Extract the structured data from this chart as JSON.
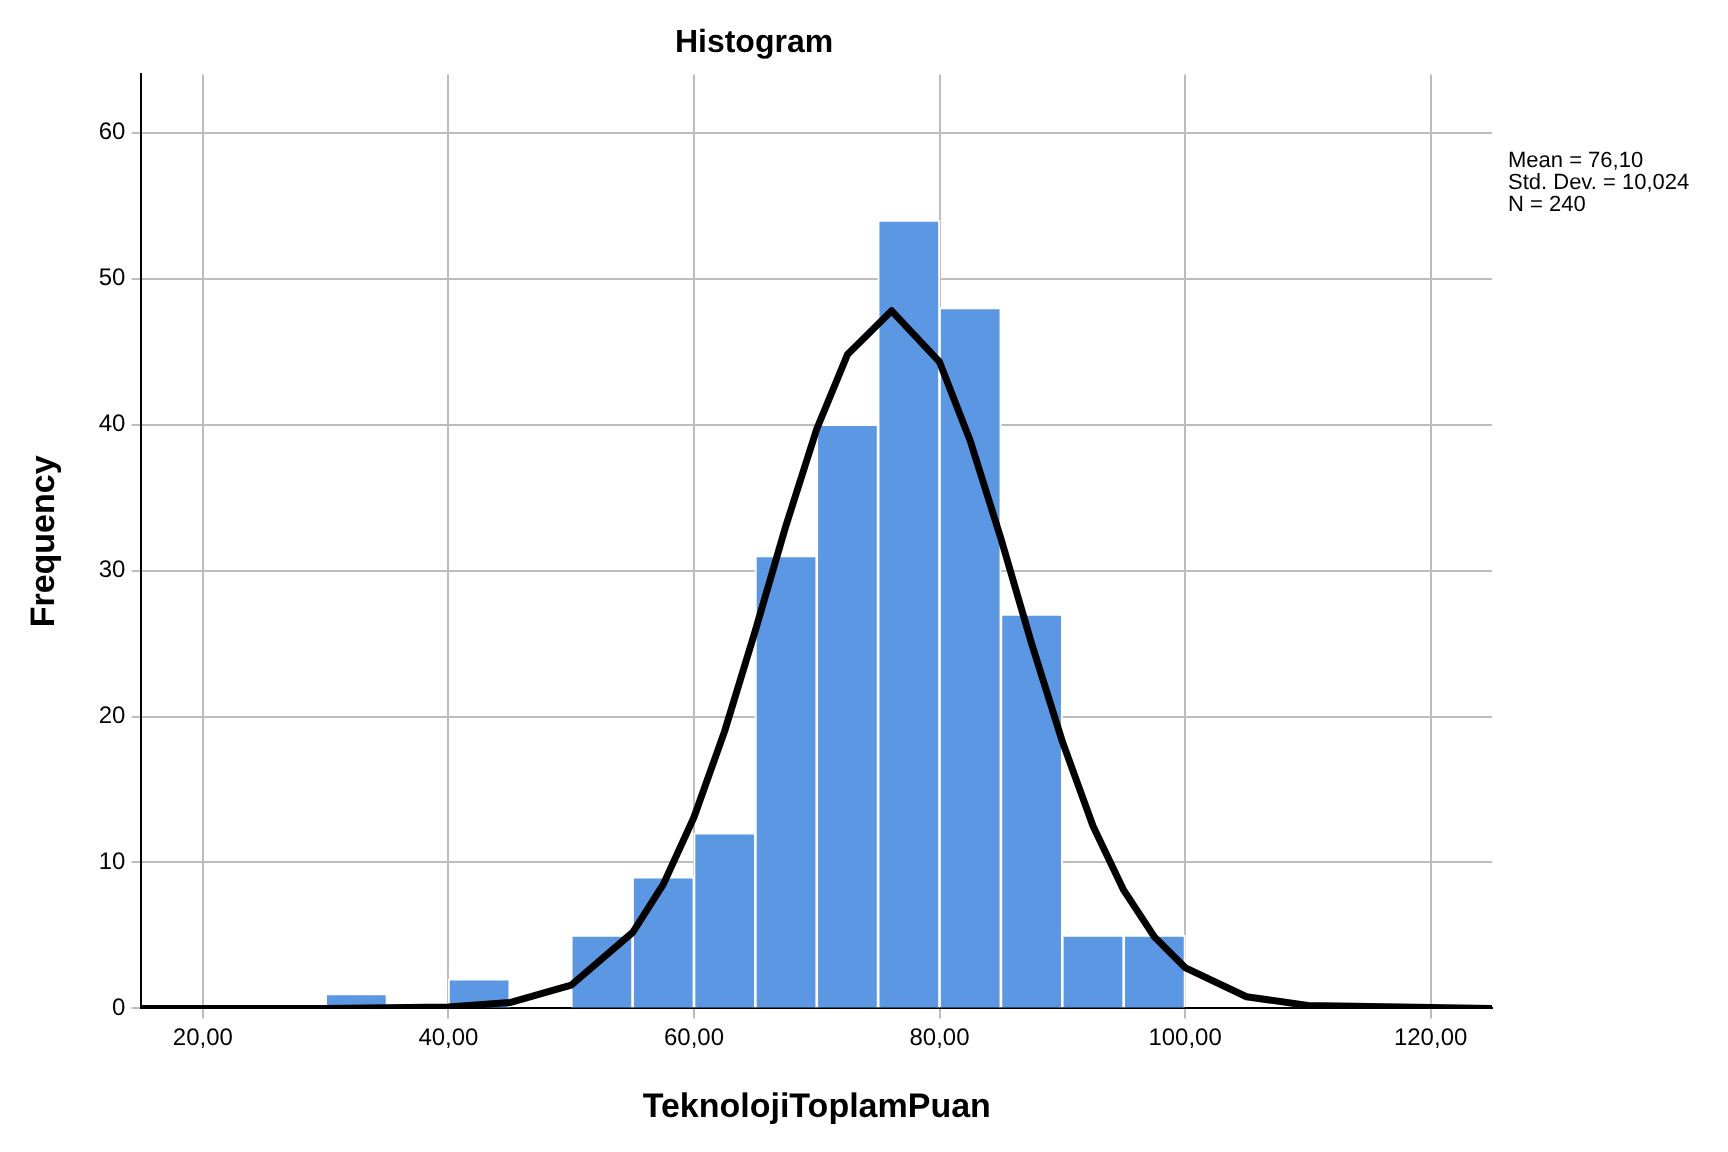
{
  "chart_data": {
    "type": "histogram",
    "title": "Histogram",
    "xlabel": "TeknolojiToplamPuan",
    "ylabel": "Frequency",
    "bins": [
      30,
      35,
      40,
      45,
      50,
      55,
      60,
      65,
      70,
      75,
      80,
      85,
      90,
      95,
      100
    ],
    "values": [
      1,
      0,
      2,
      0,
      5,
      9,
      12,
      31,
      40,
      54,
      48,
      27,
      5,
      5
    ],
    "color": "#5b97e3",
    "series": [
      {
        "type": "line",
        "color": "#000000",
        "marker": "none",
        "x": [
          15,
          30,
          40,
          45,
          50,
          55,
          57.5,
          60,
          62.5,
          65,
          67.5,
          70,
          72.5,
          76.1,
          80,
          82.5,
          85,
          87.5,
          90,
          92.5,
          95,
          97.5,
          100,
          105,
          110,
          125
        ],
        "values": [
          0,
          0,
          0.1,
          0.4,
          1.6,
          5.2,
          8.5,
          13.1,
          19.0,
          25.9,
          33.1,
          39.7,
          44.8,
          47.8,
          44.3,
          38.9,
          32.2,
          25.0,
          18.3,
          12.5,
          8.1,
          4.9,
          2.8,
          0.8,
          0.2,
          0
        ]
      }
    ],
    "xlim": [
      15,
      125
    ],
    "ylim": [
      0,
      64
    ],
    "xticks": [
      {
        "value": 20,
        "label": "20,00"
      },
      {
        "value": 40,
        "label": "40,00"
      },
      {
        "value": 60,
        "label": "60,00"
      },
      {
        "value": 80,
        "label": "80,00"
      },
      {
        "value": 100,
        "label": "100,00"
      },
      {
        "value": 120,
        "label": "120,00"
      }
    ],
    "yticks": [
      0,
      10,
      20,
      30,
      40,
      50,
      60
    ],
    "grid": true,
    "legend": false,
    "annotations": [
      "Mean = 76,10",
      "Std. Dev. = 10,024",
      "N = 240"
    ]
  }
}
